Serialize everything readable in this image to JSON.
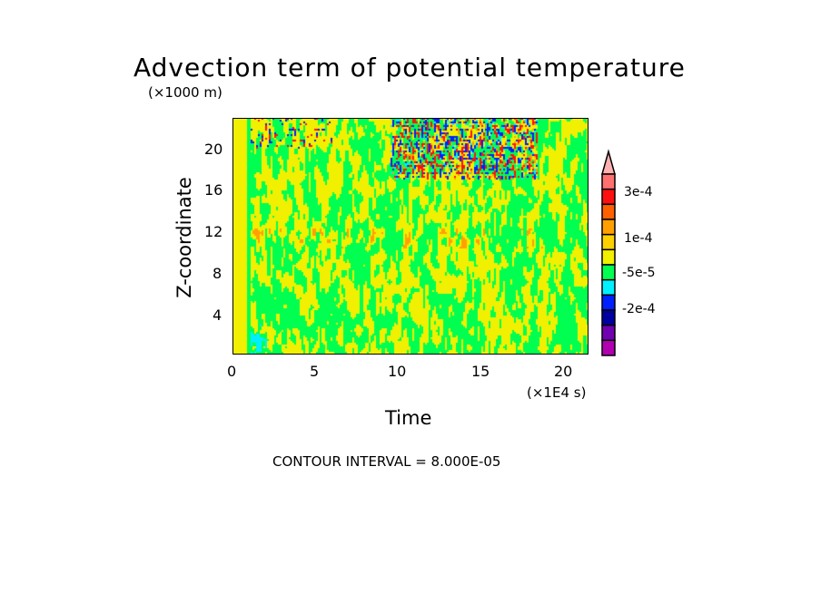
{
  "chart_data": {
    "type": "heatmap",
    "title": "Advection term of potential temperature",
    "xlabel": "Time",
    "x_unit": "(×1E4 s)",
    "ylabel": "Z-coordinate",
    "y_unit": "(×1000 m)",
    "xlim": [
      0,
      21.6
    ],
    "ylim": [
      0,
      22.9
    ],
    "xticks": [
      "0",
      "5",
      "10",
      "15",
      "20"
    ],
    "yticks": [
      "4",
      "8",
      "12",
      "16",
      "20"
    ],
    "contour_interval": "CONTOUR INTERVAL = 8.000E-05",
    "colorbar": {
      "labels": [
        "3e-4",
        "1e-4",
        "-5e-5",
        "-2e-4"
      ],
      "colors": [
        "#ffb0b0",
        "#ff7070",
        "#ff1010",
        "#ff6000",
        "#ffa000",
        "#ffd000",
        "#f0f000",
        "#00ff50",
        "#00f0ff",
        "#0020ff",
        "#0000a0",
        "#7000b0",
        "#b000b0"
      ]
    }
  }
}
